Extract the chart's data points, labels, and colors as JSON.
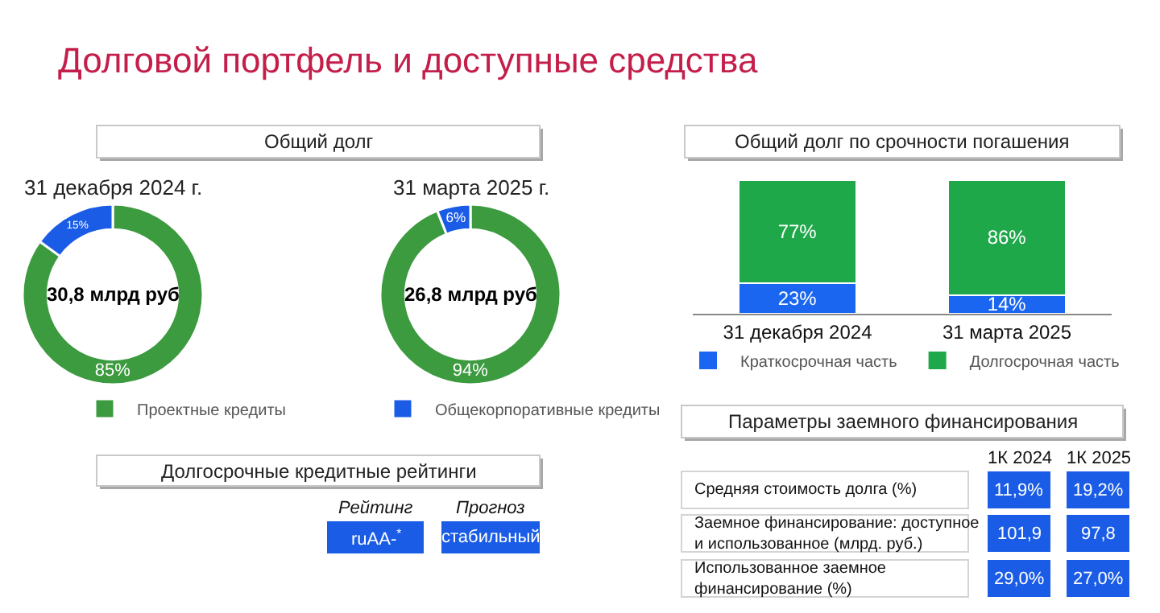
{
  "chart_data": [
    {
      "type": "other",
      "title": "Долговой портфель и доступные средства"
    },
    {
      "type": "donut",
      "title": "Общий долг",
      "subtitle": "31 декабря 2024 г.",
      "categories": [
        "Проектные кредиты",
        "Общекорпоративные кредиты"
      ],
      "values": [
        85,
        15
      ],
      "value_labels": [
        "85%",
        "15%"
      ],
      "colors": [
        "#3c9a3f",
        "#1a5ce6"
      ],
      "annotations": [
        "30,8 млрд руб"
      ],
      "legend": "bottom"
    },
    {
      "type": "donut",
      "subtitle": "31 марта 2025 г.",
      "categories": [
        null,
        null
      ],
      "values": [
        94,
        6
      ],
      "value_labels": [
        "94%",
        "6%"
      ],
      "colors": [
        "#3c9a3f",
        "#1a5ce6"
      ],
      "annotations": [
        "26,8 млрд руб"
      ]
    },
    {
      "type": "bar",
      "title": "Общий долг по срочности погашения",
      "stacked": true,
      "categories": [
        "31 декабря 2024",
        "31 марта 2025"
      ],
      "series": [
        {
          "name": "Краткосрочная часть",
          "color": "#1a66f0",
          "values": [
            23,
            14
          ],
          "value_labels": [
            "23%",
            "14%"
          ]
        },
        {
          "name": "Долгосрочная часть",
          "color": "#1fa84a",
          "values": [
            77,
            86
          ],
          "value_labels": [
            "77%",
            "86%"
          ]
        }
      ],
      "legend": "bottom"
    },
    {
      "type": "other",
      "title": "Долгосрочные кредитные рейтинги",
      "categories": [
        "Рейтинг",
        "Прогноз"
      ],
      "cell_labels": [
        [
          "ruAA-$^{*}$",
          "стабильный"
        ]
      ],
      "color": "#1a5ce6"
    },
    {
      "type": "other",
      "title": "Параметры заемного финансирования",
      "categories": [
        "1К 2024",
        "1К 2025"
      ],
      "y_categories": [
        "Средняя стоимость долга (%)",
        "Заемное финансирование: доступное и использованное (млрд. руб.)",
        "Использованное заемное финансирование (%)"
      ],
      "cell_labels": [
        [
          "11,9%",
          "19,2%"
        ],
        [
          "101,9",
          "97,8"
        ],
        [
          "29,0%",
          "27,0%"
        ]
      ],
      "color": "#1a5ce6"
    }
  ]
}
